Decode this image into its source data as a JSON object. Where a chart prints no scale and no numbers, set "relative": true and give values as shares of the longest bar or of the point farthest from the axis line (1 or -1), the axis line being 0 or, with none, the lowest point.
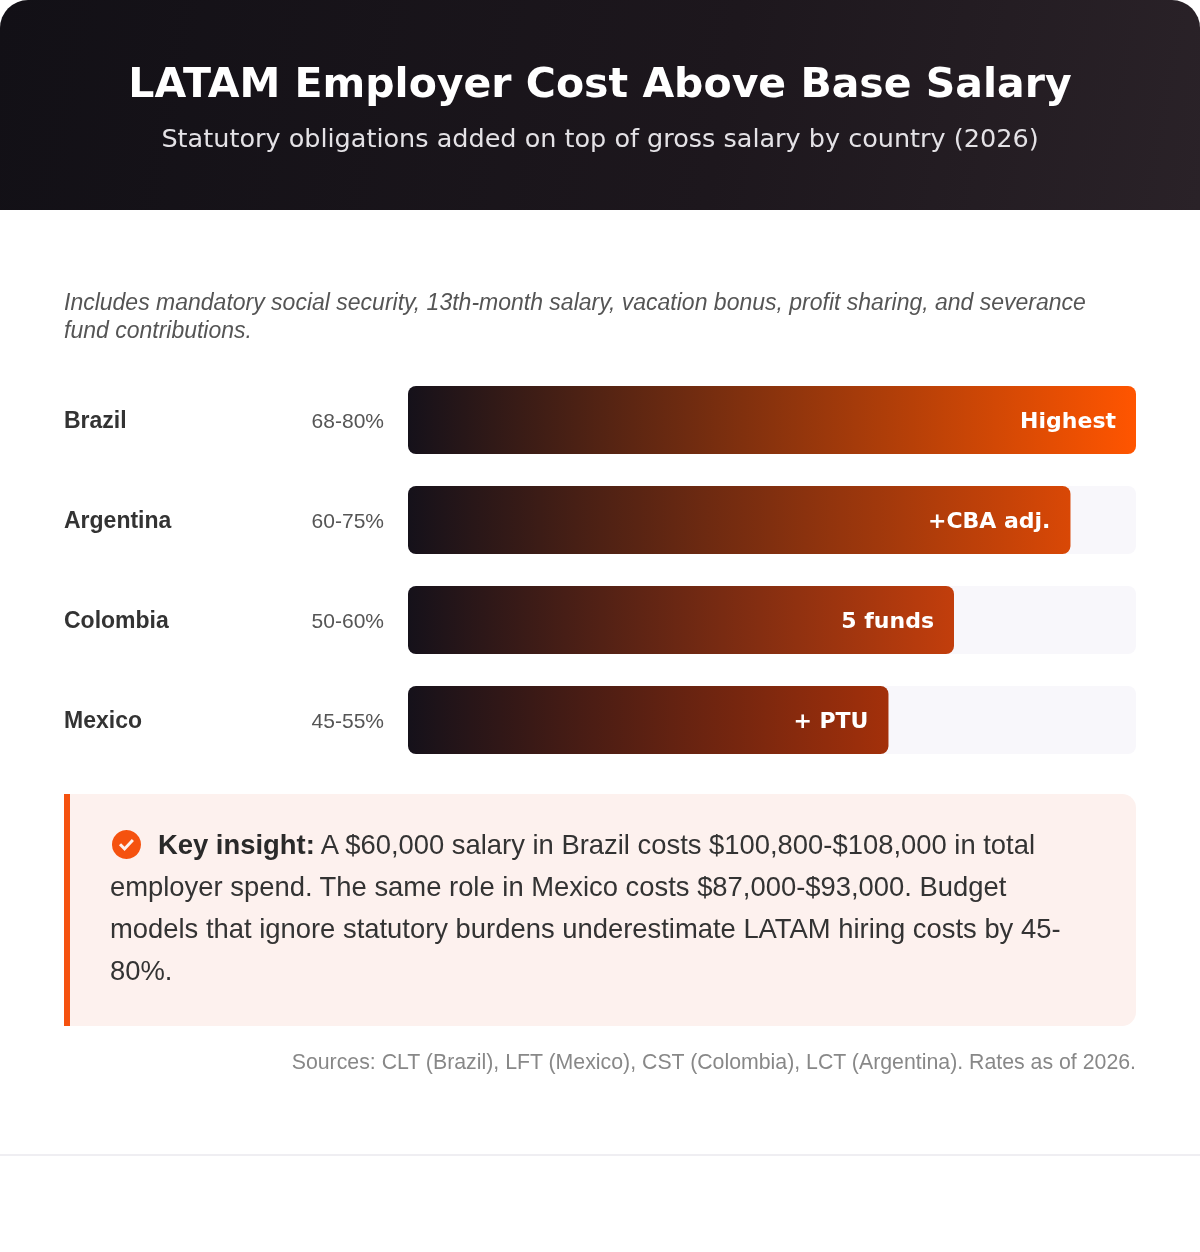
{
  "chart_data": {
    "type": "bar",
    "orientation": "horizontal",
    "relative": true,
    "title": "LATAM Employer Cost Above Base Salary",
    "subtitle": "Statutory obligations added on top of gross salary by country (2026)",
    "categories": [
      "Brazil",
      "Argentina",
      "Colombia",
      "Mexico"
    ],
    "values": [
      1,
      0.91,
      0.75,
      0.66
    ],
    "colors": [
      "#ff5500",
      "#d94806",
      "#c23e0c",
      "#a3300a"
    ],
    "annotations": [
      "Includes mandatory social security, 13th-month salary, vacation bonus, profit sharing, and severance fund contributions.",
      "68-80%",
      "60-75%",
      "50-60%",
      "45-55%",
      {
        "text": "Highest",
        "x": 1,
        "y": "Brazil"
      },
      {
        "text": "+CBA adj.",
        "x": 0.91,
        "y": "Argentina"
      },
      {
        "text": "5 funds",
        "x": 0.75,
        "y": "Colombia"
      },
      {
        "text": "+ PTU",
        "x": 0.66,
        "y": "Mexico"
      },
      "Key insight: A $60,000 salary in Brazil costs $100,800-$108,000 in total employer spend. The same role in Mexico costs $87,000-$93,000. Budget models that ignore statutory burdens underestimate LATAM hiring costs by 45-80%.",
      "Sources: CLT (Brazil), LFT (Mexico), CST (Colombia), LCT (Argentina). Rates as of 2026."
    ]
  }
}
